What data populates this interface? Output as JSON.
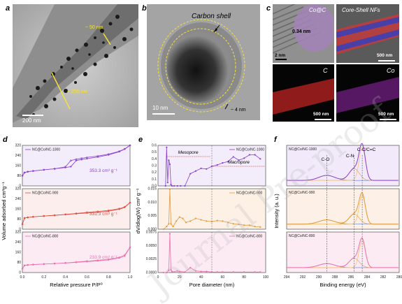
{
  "panels": {
    "a": {
      "letter": "a",
      "label_50": "~ 50 nm",
      "label_250": "~ 250 nm",
      "scale": "200 nm"
    },
    "b": {
      "letter": "b",
      "title": "Carbon shell",
      "label_4": "~ 4 nm",
      "scale": "10 nm"
    },
    "c": {
      "letter": "c",
      "tl_title": "Co@C",
      "tl_spacing": "0.34 nm",
      "tl_scale": "2 nm",
      "tr_title": "Core-Shell NFs",
      "tr_scale": "500 nm",
      "bl_title": "C",
      "bl_scale": "500 nm",
      "br_title": "Co",
      "br_scale": "500 nm"
    },
    "d": {
      "letter": "d"
    },
    "e": {
      "letter": "e"
    },
    "f": {
      "letter": "f"
    }
  },
  "watermark": "Journal Pre-proof",
  "chart_data": [
    {
      "type": "line",
      "panel": "d",
      "xlabel": "Relative pressure P/P⁰",
      "ylabel": "Volume adsorbed cm³g⁻¹",
      "xlim": [
        0.0,
        1.0
      ],
      "xticks": [
        "0.0",
        "0.2",
        "0.4",
        "0.6",
        "0.8",
        "1.0"
      ],
      "subplots": [
        {
          "series": [
            {
              "name": "NC@Co/NC-1000"
            }
          ],
          "color": "#8a3fd1",
          "annotation": "353.3 cm³ g⁻¹",
          "ylim": [
            0,
            320
          ],
          "yticks": [
            0,
            80,
            160,
            240,
            320
          ],
          "x": [
            0.0,
            0.02,
            0.05,
            0.1,
            0.2,
            0.3,
            0.4,
            0.45,
            0.5,
            0.55,
            0.6,
            0.7,
            0.8,
            0.9,
            0.95,
            1.0
          ],
          "ads": [
            80,
            105,
            112,
            118,
            127,
            135,
            145,
            152,
            200,
            208,
            215,
            228,
            245,
            270,
            290,
            320
          ],
          "des": [
            80,
            105,
            112,
            118,
            127,
            135,
            150,
            200,
            210,
            218,
            225,
            236,
            250,
            273,
            292,
            320
          ]
        },
        {
          "series": [
            {
              "name": "NC@Co/NC-900"
            }
          ],
          "color": "#e24b3d",
          "annotation": "331.3 cm³ g⁻¹",
          "ylim": [
            0,
            320
          ],
          "yticks": [
            0,
            80,
            160,
            240,
            320
          ],
          "x": [
            0.0,
            0.02,
            0.05,
            0.1,
            0.2,
            0.3,
            0.4,
            0.5,
            0.6,
            0.7,
            0.8,
            0.9,
            0.95,
            1.0
          ],
          "ads": [
            40,
            88,
            93,
            98,
            104,
            110,
            116,
            122,
            128,
            134,
            142,
            158,
            172,
            210
          ],
          "des": [
            40,
            88,
            93,
            98,
            104,
            110,
            117,
            125,
            133,
            140,
            148,
            162,
            176,
            210
          ]
        },
        {
          "series": [
            {
              "name": "NC@Co/NC-800"
            }
          ],
          "color": "#ec6fb0",
          "annotation": "233.9 cm³ g⁻¹",
          "ylim": [
            0,
            320
          ],
          "yticks": [
            0,
            80,
            160,
            240,
            320
          ],
          "x": [
            0.0,
            0.02,
            0.05,
            0.1,
            0.2,
            0.3,
            0.4,
            0.5,
            0.6,
            0.7,
            0.8,
            0.9,
            0.95,
            1.0
          ],
          "ads": [
            30,
            56,
            60,
            63,
            67,
            71,
            75,
            80,
            86,
            92,
            100,
            115,
            130,
            200
          ],
          "des": [
            30,
            56,
            60,
            63,
            67,
            71,
            76,
            83,
            90,
            97,
            105,
            120,
            138,
            200
          ]
        }
      ]
    },
    {
      "type": "line",
      "panel": "e",
      "xlabel": "Pore diameter (nm)",
      "ylabel": "dV/dlog(W) cm³ g⁻¹",
      "xlim": [
        0,
        100
      ],
      "xticks": [
        "0",
        "20",
        "40",
        "60",
        "80",
        "100"
      ],
      "annotations": [
        "Mesopore",
        "Macropore"
      ],
      "divider_x": 50,
      "subplots": [
        {
          "series": [
            {
              "name": "NC@Co/NC-1000"
            }
          ],
          "color": "#8a3fd1",
          "ylim": [
            0.0,
            0.6
          ],
          "yticks": [
            "0.0",
            "0.1",
            "0.2",
            "0.3",
            "0.4",
            "0.5",
            "0.6"
          ],
          "x": [
            7,
            8,
            9,
            10,
            11,
            12,
            13,
            15,
            18,
            21,
            25,
            30,
            35,
            40,
            45,
            50,
            55,
            60,
            65,
            70,
            75,
            80,
            85,
            90,
            95
          ],
          "y": [
            0.0,
            0.57,
            0.05,
            0.38,
            0.32,
            0.02,
            0.0,
            0.0,
            0.0,
            0.0,
            0.0,
            0.18,
            0.22,
            0.26,
            0.25,
            0.29,
            0.31,
            0.34,
            0.36,
            0.43,
            0.38,
            0.41,
            0.46,
            0.46,
            0.4
          ]
        },
        {
          "series": [
            {
              "name": "NC@Co/NC-900"
            }
          ],
          "color": "#e49a3c",
          "ylim": [
            0.0,
            0.015
          ],
          "yticks": [
            "0.000",
            "0.005",
            "0.010",
            "0.015"
          ],
          "x": [
            5,
            8,
            10,
            11,
            12,
            14,
            17,
            20,
            23,
            26,
            30,
            35,
            40,
            45,
            50,
            55,
            60,
            65,
            70,
            75,
            80,
            85,
            90,
            95
          ],
          "y": [
            0.0,
            0.001,
            0.002,
            0.0148,
            0.002,
            0.001,
            0.003,
            0.0045,
            0.004,
            0.0025,
            0.003,
            0.004,
            0.0035,
            0.003,
            0.0028,
            0.0032,
            0.003,
            0.0025,
            0.002,
            0.0018,
            0.0015,
            0.0015,
            0.001,
            0.0008
          ]
        },
        {
          "series": [
            {
              "name": "NC@Co/NC-800"
            }
          ],
          "color": "#ec6fb0",
          "ylim": [
            0.0,
            0.0075
          ],
          "yticks": [
            "0.0000",
            "0.0025",
            "0.0050",
            "0.0075"
          ],
          "x": [
            5,
            8,
            10,
            11,
            12,
            13,
            15,
            18,
            20,
            25,
            30,
            35,
            40,
            45,
            50,
            55,
            60,
            70,
            80,
            90,
            95
          ],
          "y": [
            0.0,
            0.0,
            0.0004,
            0.0072,
            0.0005,
            0.0002,
            0.0001,
            0.0003,
            0.0002,
            0.0001,
            0.0009,
            0.0003,
            0.0002,
            0.0002,
            0.0001,
            0.0001,
            0.0001,
            0.0001,
            0.0001,
            0.0001,
            0.0001
          ]
        }
      ]
    },
    {
      "type": "line",
      "panel": "f",
      "xlabel": "Binding energy (eV)",
      "ylabel": "Intensity (a. u.)",
      "xlim": [
        294,
        280
      ],
      "xticks": [
        "294",
        "292",
        "290",
        "288",
        "286",
        "284",
        "282",
        "280"
      ],
      "peak_labels": [
        "C-O",
        "C-N",
        "C-C/C=C"
      ],
      "peak_positions": [
        289.0,
        285.6,
        284.6
      ],
      "subplots": [
        {
          "series": [
            {
              "name": "NC@Co/NC-1000"
            }
          ],
          "color": "#8a3fd1",
          "bg": "#f2eafb"
        },
        {
          "series": [
            {
              "name": "NC@Co/NC-900"
            }
          ],
          "color": "#e49a3c",
          "bg": "#fdf0e6"
        },
        {
          "series": [
            {
              "name": "NC@Co/NC-800"
            }
          ],
          "color": "#ec6fb0",
          "bg": "#fcebf3"
        }
      ]
    }
  ]
}
